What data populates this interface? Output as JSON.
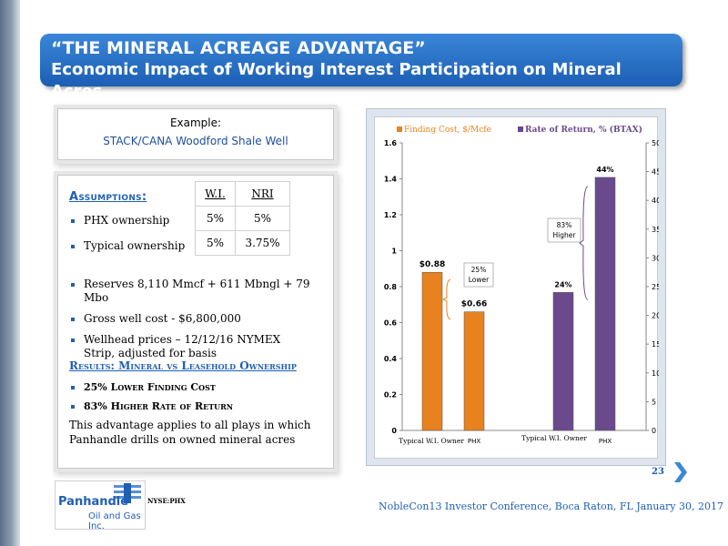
{
  "header": {
    "title": "“THE MINERAL ACREAGE ADVANTAGE”",
    "subtitle": "Economic Impact of Working Interest Participation on Mineral Acres"
  },
  "example": {
    "label": "Example:",
    "well": "STACK/CANA Woodford Shale Well"
  },
  "assumptions": {
    "title": "Assumptions:",
    "col_wi": "W.I.",
    "col_nri": "NRI",
    "rows": [
      {
        "label": "PHX ownership",
        "wi": "5%",
        "nri": "5%"
      },
      {
        "label": "Typical  ownership",
        "wi": "5%",
        "nri": "3.75%"
      }
    ],
    "bullets": [
      "Reserves  8,110 Mmcf +  611  Mbngl + 79 Mbo",
      "Gross well cost - $6,800,000",
      "Wellhead prices – 12/12/16 NYMEX Strip, adjusted for basis"
    ]
  },
  "results": {
    "title": "Results:  Mineral vs Leasehold Ownership",
    "items": [
      "25%  Lower Finding Cost",
      "83% Higher Rate of Return"
    ],
    "advantage": "This advantage applies to all plays in which Panhandle drills on owned mineral acres"
  },
  "chart_data": {
    "type": "bar",
    "legend": [
      "Finding Cost, $/Mcfe",
      "Rate of Return, % (BTAX)"
    ],
    "legend_position": "top",
    "colors": {
      "finding_cost": "#e8821e",
      "rate_of_return": "#6a4a8c"
    },
    "left_axis": {
      "ylim": [
        0,
        1.6
      ],
      "ticks": [
        "0",
        "0.2",
        "0.4",
        "0.6",
        "0.8",
        "1",
        "1.2",
        "1.4",
        "1.6"
      ]
    },
    "right_axis": {
      "ylim": [
        0,
        50
      ],
      "ticks": [
        "0",
        "5",
        "10",
        "15",
        "20",
        "25",
        "30",
        "35",
        "40",
        "45",
        "50"
      ]
    },
    "groups": [
      {
        "series": "Finding Cost, $/Mcfe",
        "axis": "left",
        "bars": [
          {
            "category": "Typical W.I. Owner",
            "value": 0.88,
            "label": "$0.88"
          },
          {
            "category": "PHX",
            "value": 0.66,
            "label": "$0.66"
          }
        ],
        "callout": "25% Lower"
      },
      {
        "series": "Rate of Return, % (BTAX)",
        "axis": "right",
        "bars": [
          {
            "category": "Typical W.I. Owner",
            "value": 24,
            "label": "24%"
          },
          {
            "category": "PHX",
            "value": 44,
            "label": "44%"
          }
        ],
        "callout": "83% Higher"
      }
    ]
  },
  "footer": {
    "page": "23",
    "conference": "NobleCon13 Investor Conference, Boca Raton, FL January 30, 2017",
    "logo_line1": "Panhandle",
    "logo_line2": "Oil and Gas Inc.",
    "ticker": "NYSE:PHX"
  }
}
